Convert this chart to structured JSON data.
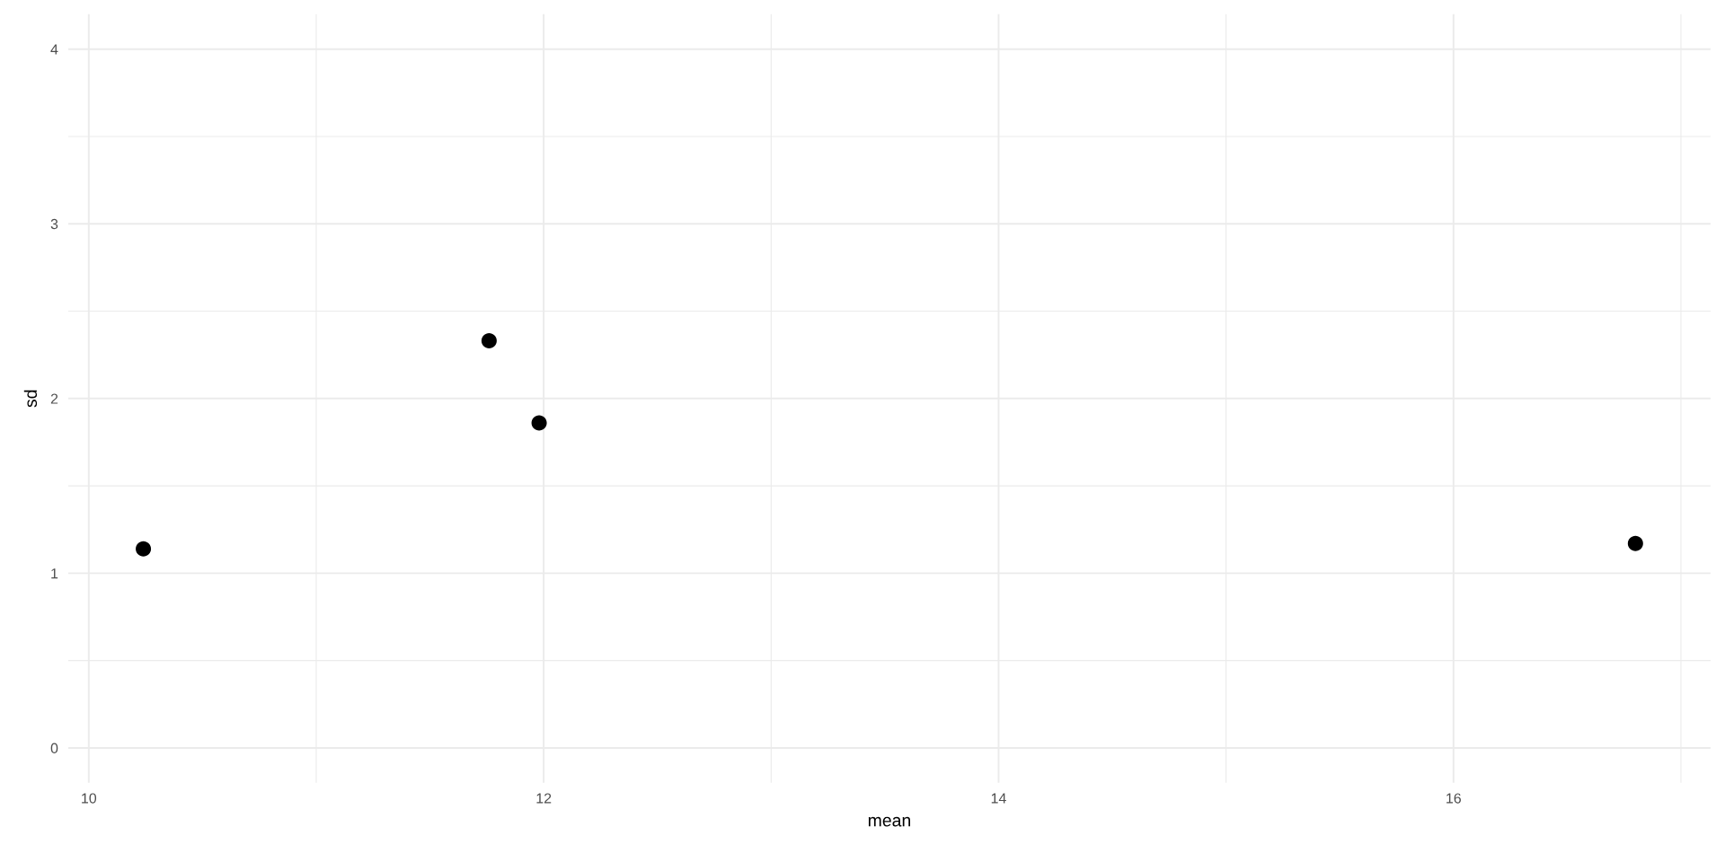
{
  "chart_data": {
    "type": "scatter",
    "xlabel": "mean",
    "ylabel": "sd",
    "x": [
      10.24,
      11.76,
      11.98,
      16.8
    ],
    "values": [
      1.14,
      2.33,
      1.86,
      1.17
    ],
    "color": "#000000",
    "marker": "circle",
    "xlim": [
      9.91,
      17.13
    ],
    "ylim": [
      -0.2,
      4.2
    ],
    "xticks": [
      10,
      {
        "value": 11,
        "label": null
      },
      12,
      {
        "value": 13,
        "label": null
      },
      14,
      {
        "value": 15,
        "label": null
      },
      16,
      {
        "value": 17,
        "label": null
      }
    ],
    "yticks": [
      0,
      {
        "value": 0.5,
        "label": null
      },
      1,
      {
        "value": 1.5,
        "label": null
      },
      2,
      {
        "value": 2.5,
        "label": null
      },
      3,
      {
        "value": 3.5,
        "label": null
      },
      4
    ],
    "grid": true,
    "legend": false
  }
}
